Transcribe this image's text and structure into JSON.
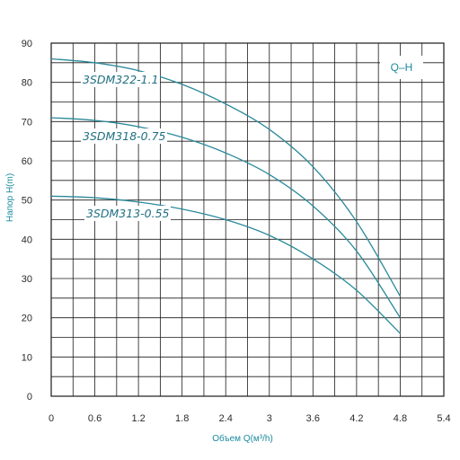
{
  "chart_data": {
    "type": "line",
    "title": "",
    "legend_badge": "Q–H",
    "xlabel": "Объем Q(м³/h)",
    "ylabel": "Напор H(m)",
    "xlim": [
      0,
      5.4
    ],
    "ylim": [
      0,
      90
    ],
    "x_ticks": [
      "0",
      "0.6",
      "1.2",
      "1.8",
      "2.4",
      "3",
      "3.6",
      "4.2",
      "4.8",
      "5.4"
    ],
    "y_ticks": [
      "0",
      "10",
      "20",
      "30",
      "40",
      "50",
      "60",
      "70",
      "80",
      "90"
    ],
    "grid": true,
    "series": [
      {
        "name": "3SDM322-1.1",
        "x": [
          0,
          0.6,
          1.2,
          1.8,
          2.4,
          3.0,
          3.6,
          4.2,
          4.8
        ],
        "y": [
          86,
          85,
          83,
          79.5,
          74.5,
          68,
          58.5,
          44.5,
          25.5
        ]
      },
      {
        "name": "3SDM318-0.75",
        "x": [
          0,
          0.6,
          1.2,
          1.8,
          2.4,
          3.0,
          3.6,
          4.2,
          4.8
        ],
        "y": [
          71,
          70.3,
          68.7,
          66,
          62,
          56.5,
          48.5,
          37,
          20
        ]
      },
      {
        "name": "3SDM313-0.55",
        "x": [
          0,
          0.6,
          1.2,
          1.8,
          2.4,
          3.0,
          3.6,
          4.2,
          4.8
        ],
        "y": [
          51,
          50.6,
          49.5,
          47.7,
          45,
          41,
          35,
          27,
          16
        ]
      }
    ],
    "colors": {
      "curve": "#2a8a9a",
      "grid": "#1a1a1a",
      "accent": "#1a8aa0"
    }
  }
}
